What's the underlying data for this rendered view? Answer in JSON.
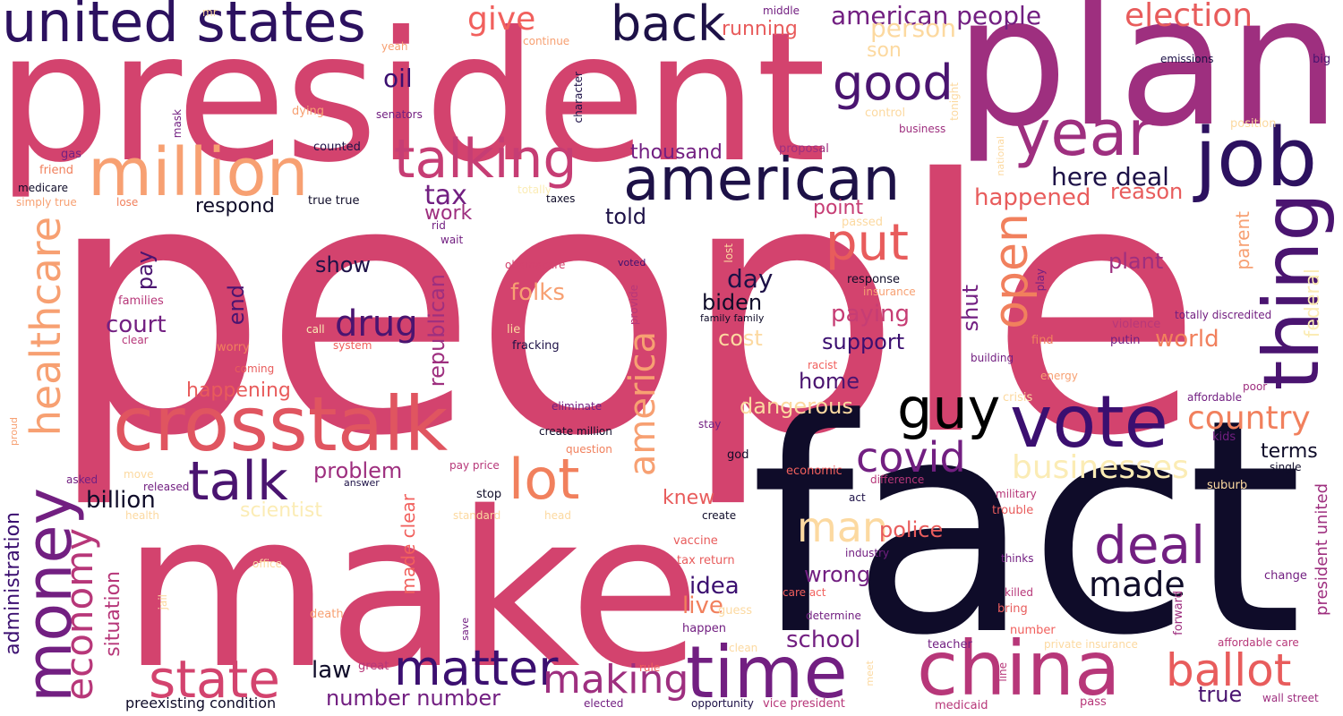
{
  "title": "Word cloud",
  "palette": {
    "dark_navy": "#0f0c29",
    "indigo": "#2c115f",
    "purple": "#721f81",
    "magenta": "#b73779",
    "rose": "#d3436e",
    "coral": "#e85c5c",
    "orange": "#f1605d",
    "peach": "#f7a072",
    "sand": "#fcd9a0",
    "cream": "#fbecb5"
  },
  "words": {
    "people": "people",
    "fact": "fact",
    "president": "president",
    "plan": "plan",
    "make": "make",
    "united_states": "united states",
    "crosstalk": "crosstalk",
    "million": "million",
    "year": "year",
    "job": "job",
    "thing": "thing",
    "american": "american",
    "money": "money",
    "china": "china",
    "time": "time",
    "vote": "vote",
    "healthcare": "healthcare",
    "talking": "talking",
    "back": "back",
    "guy": "guy",
    "talk": "talk",
    "state": "state",
    "matter": "matter",
    "lot": "lot",
    "deal": "deal",
    "covid": "covid",
    "open": "open",
    "put": "put",
    "america": "america",
    "economy": "economy",
    "ballot": "ballot",
    "good": "good",
    "man": "man",
    "making": "making",
    "made": "made",
    "give": "give",
    "election": "election",
    "american_people": "american people",
    "drug": "drug",
    "businesses": "businesses",
    "country": "country",
    "person": "person",
    "tax": "tax",
    "work": "work",
    "here_deal": "here deal",
    "happened": "happened",
    "reason": "reason",
    "oil": "oil",
    "son": "son",
    "running": "running",
    "thousand": "thousand",
    "told": "told",
    "respond": "respond",
    "show": "show",
    "pay": "pay",
    "folks": "folks",
    "court": "court",
    "end": "end",
    "day": "day",
    "biden": "biden",
    "shut": "shut",
    "paying": "paying",
    "point": "point",
    "plant": "plant",
    "parent": "parent",
    "world": "world",
    "federal": "federal",
    "support": "support",
    "home": "home",
    "cost": "cost",
    "republican": "republican",
    "happening": "happening",
    "dangerous": "dangerous",
    "problem": "problem",
    "terms": "terms",
    "billion": "billion",
    "scientist": "scientist",
    "knew": "knew",
    "police": "police",
    "wrong": "wrong",
    "idea": "idea",
    "live": "live",
    "school": "school",
    "administration": "administration",
    "situation": "situation",
    "made_clear": "made clear",
    "law": "law",
    "number_number": "number number",
    "true": "true",
    "preexisting_condition": "preexisting condition",
    "president_united": "president united",
    "healthcare_small": "",
    "middle": "middle",
    "continue": "continue",
    "emissions": "emissions",
    "big": "big",
    "mr": "mr",
    "yeah": "yeah",
    "senators": "senators",
    "character": "character",
    "tonight": "tonight",
    "business": "business",
    "position": "position",
    "control": "control",
    "mask": "mask",
    "dying": "dying",
    "gas": "gas",
    "friend": "friend",
    "counted": "counted",
    "proposal": "proposal",
    "national": "national",
    "medicare": "medicare",
    "simply_true": "simply true",
    "lose": "lose",
    "true_true": "true true",
    "taxes": "taxes",
    "totally": "totally",
    "passed": "passed",
    "rid": "rid",
    "wait": "wait",
    "obamacare": "obamacare",
    "voted": "voted",
    "lost": "lost",
    "response": "response",
    "insurance": "insurance",
    "play": "play",
    "provide": "provide",
    "family_family": "family family",
    "violence": "violence",
    "totally_discredited": "totally discredited",
    "families": "families",
    "clear": "clear",
    "call": "call",
    "lie": "lie",
    "fracking": "fracking",
    "find": "find",
    "putin": "putin",
    "worry": "worry",
    "system": "system",
    "building": "building",
    "racist": "racist",
    "coming": "coming",
    "energy": "energy",
    "poor": "poor",
    "eliminate": "eliminate",
    "crisis": "crisis",
    "affordable": "affordable",
    "proud": "proud",
    "create_million": "create million",
    "stay": "stay",
    "kids": "kids",
    "question": "question",
    "god": "god",
    "economic": "economic",
    "single": "single",
    "asked": "asked",
    "move": "move",
    "released": "released",
    "pay_price": "pay price",
    "answer": "answer",
    "stop": "stop",
    "difference": "difference",
    "act": "act",
    "military": "military",
    "suburb": "suburb",
    "health": "health",
    "standard": "standard",
    "head": "head",
    "create": "create",
    "trouble": "trouble",
    "vaccine": "vaccine",
    "office": "office",
    "tax_return": "tax return",
    "industry": "industry",
    "thinks": "thinks",
    "change": "change",
    "jail": "jail",
    "care_act": "care act",
    "killed": "killed",
    "forward": "forward",
    "death": "death",
    "guess": "guess",
    "determine": "determine",
    "bring": "bring",
    "save": "save",
    "happen": "happen",
    "number": "number",
    "clean": "clean",
    "private_insurance": "private insurance",
    "affordable_care": "affordable care",
    "teacher": "teacher",
    "rule": "rule",
    "great": "great",
    "meet": "meet",
    "line": "line",
    "elected": "elected",
    "opportunity": "opportunity",
    "vice_president": "vice president",
    "medicaid": "medicaid",
    "pass": "pass",
    "wall_street": "wall street"
  }
}
